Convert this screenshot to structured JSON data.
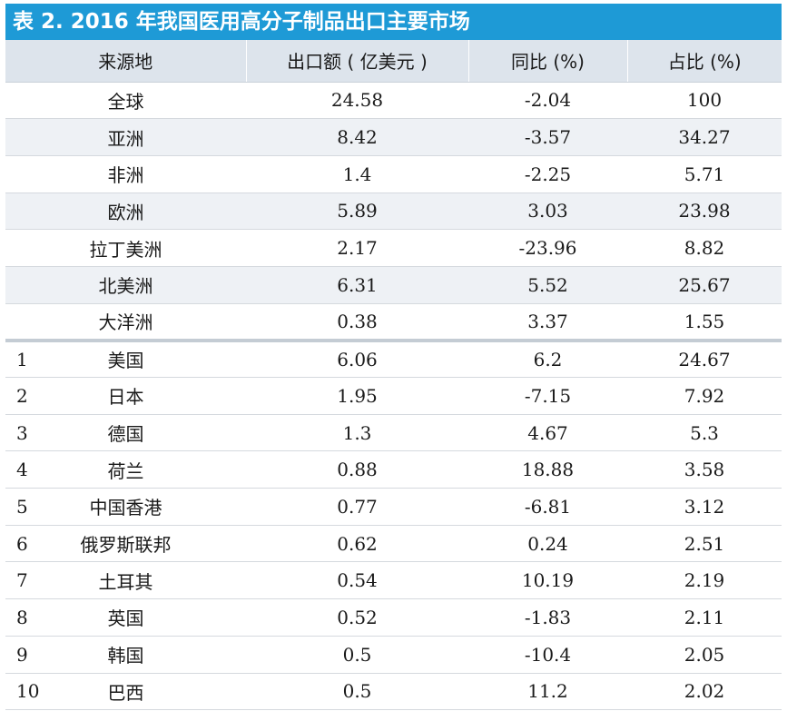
{
  "title": "表 2. 2016 年我国医用高分子制品出口主要市场",
  "columns": [
    "来源地",
    "出口额 ( 亿美元 )",
    "同比 (%)",
    "占比 (%)"
  ],
  "regions": [
    {
      "name": "全球",
      "value": "24.58",
      "yoy": "-2.04",
      "share": "100"
    },
    {
      "name": "亚洲",
      "value": "8.42",
      "yoy": "-3.57",
      "share": "34.27"
    },
    {
      "name": "非洲",
      "value": "1.4",
      "yoy": "-2.25",
      "share": "5.71"
    },
    {
      "name": "欧洲",
      "value": "5.89",
      "yoy": "3.03",
      "share": "23.98"
    },
    {
      "name": "拉丁美洲",
      "value": "2.17",
      "yoy": "-23.96",
      "share": "8.82"
    },
    {
      "name": "北美洲",
      "value": "6.31",
      "yoy": "5.52",
      "share": "25.67"
    },
    {
      "name": "大洋洲",
      "value": "0.38",
      "yoy": "3.37",
      "share": "1.55"
    }
  ],
  "countries": [
    {
      "rank": "1",
      "name": "美国",
      "value": "6.06",
      "yoy": "6.2",
      "share": "24.67"
    },
    {
      "rank": "2",
      "name": "日本",
      "value": "1.95",
      "yoy": "-7.15",
      "share": "7.92"
    },
    {
      "rank": "3",
      "name": "德国",
      "value": "1.3",
      "yoy": "4.67",
      "share": "5.3"
    },
    {
      "rank": "4",
      "name": "荷兰",
      "value": "0.88",
      "yoy": "18.88",
      "share": "3.58"
    },
    {
      "rank": "5",
      "name": "中国香港",
      "value": "0.77",
      "yoy": "-6.81",
      "share": "3.12"
    },
    {
      "rank": "6",
      "name": "俄罗斯联邦",
      "value": "0.62",
      "yoy": "0.24",
      "share": "2.51"
    },
    {
      "rank": "7",
      "name": "土耳其",
      "value": "0.54",
      "yoy": "10.19",
      "share": "2.19"
    },
    {
      "rank": "8",
      "name": "英国",
      "value": "0.52",
      "yoy": "-1.83",
      "share": "2.11"
    },
    {
      "rank": "9",
      "name": "韩国",
      "value": "0.5",
      "yoy": "-10.4",
      "share": "2.05"
    },
    {
      "rank": "10",
      "name": "巴西",
      "value": "0.5",
      "yoy": "11.2",
      "share": "2.02"
    }
  ]
}
